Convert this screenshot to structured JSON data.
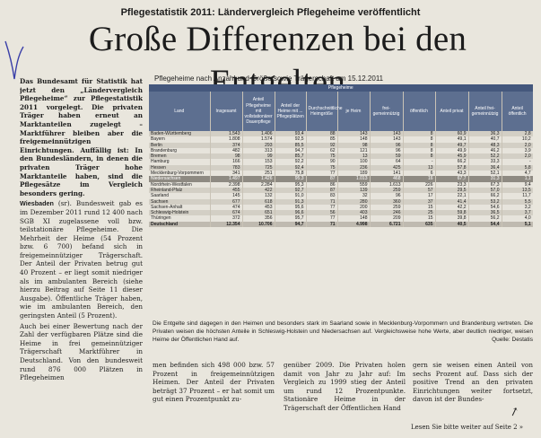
{
  "kicker": "Pflegestatistik 2011: Ländervergleich Pflegeheime veröffentlicht",
  "headline": "Große Differenzen bei den Entgelten",
  "lead": "Das Bundesamt für Statistik hat jetzt den „Ländervergleich Pflegeheime“ zur Pflegestatistik 2011 vorgelegt. Die privaten Träger haben erneut an Marktanteilen zugelegt – Marktführer bleiben aber die freigemeinnützigen Einrichtungen. Auffällig ist: In den Bundesländern, in denen die privaten Träger hohe Marktanteile haben, sind die Pflegesätze im Vergleich besonders gering.",
  "col1_body": [
    {
      "dateline": "Wiesbaden",
      "text": "(sr). Bundesweit gab es im Dezember 2011 rund 12 400 nach SGB XI zugelassene voll bzw. teilstationäre Pflegeheime. Die Mehrheit der Heime (54 Prozent bzw. 6 700) befand sich in freigemeinnütziger Trägerschaft. Der Anteil der Privaten betrug gut 40 Prozent – er liegt somit niedriger als im ambulanten Bereich (siehe hierzu Beitrag auf Seite 11 dieser Ausgabe). Öffentliche Träger haben, wie im ambulanten Bereich, den geringsten Anteil (5 Prozent)."
    },
    {
      "text": "Auch bei einer Bewertung nach der Zahl der verfügbaren Plätze sind die Heime in frei gemeinnütziger Trägerschaft Marktführer in Deutschland. Von den bundesweit rund 876 000 Plätzen in Pflegeheimen"
    }
  ],
  "col2_text": "men befinden sich 498 000 bzw. 57 Prozent in freigemeinnützigen Heimen. Der Anteil der Privaten beträgt 37 Prozent – er hat somit um gut einen Prozentpunkt zu-",
  "col3_text": "genüber 2009. Die Privaten holen damit von Jahr zu Jahr auf: Im Vergleich zu 1999 stieg der Anteil um rund 12 Prozentpunkte. Stationäre Heime in der Trägerschaft der Öffentlichen Hand",
  "col4_text": "gern sie weisen einen Anteil von sechs Prozent auf. Dass sich der positive Trend an den privaten Einrichtungen weiter fortsetzt, davon ist der Bundes-",
  "read_on": "Lesen Sie bitte weiter auf Seite 2 »",
  "table": {
    "title": "Pflegeheime nach Anzahl und Größe sowie Trägerschaft am 15.12.2011",
    "header_top": "Pflegeheime",
    "header_sub": [
      "Land",
      "Insgesamt",
      "Anteil Pflegeheime mit vollstationärer Dauerpflege",
      "Anteil der Heime mit ... Pflegeplätzen",
      "Durchschnittliche Heimgröße",
      "je Heim",
      "frei-gemeinnützig",
      "öffentlich",
      "Anteil privat",
      "Anteil frei-gemeinnützig",
      "Anteil öffentlich"
    ],
    "rows": [
      [
        "Baden-Württemberg",
        "1.543",
        "1.406",
        "93,4",
        "88",
        "143",
        "143",
        "8",
        "60,9",
        "36,3",
        "2,8"
      ],
      [
        "Bayern",
        "1.808",
        "1.574",
        "92,5",
        "85",
        "148",
        "143",
        "8",
        "49,1",
        "40,7",
        "10,2"
      ],
      [
        "Berlin",
        "374",
        "293",
        "85,5",
        "92",
        "98",
        "96",
        "8",
        "49,7",
        "48,3",
        "2,0"
      ],
      [
        "Brandenburg",
        "482",
        "313",
        "94,7",
        "62",
        "121",
        "96",
        "8",
        "49,9",
        "46,2",
        "3,9"
      ],
      [
        "Bremen",
        "98",
        "99",
        "85,7",
        "75",
        "13",
        "59",
        "8",
        "45,9",
        "52,2",
        "2,0"
      ],
      [
        "Hamburg",
        "166",
        "153",
        "92,2",
        "90",
        "100",
        "64",
        "-",
        "66,2",
        "33,3",
        "-"
      ],
      [
        "Hessen",
        "783",
        "725",
        "92,4",
        "75",
        "236",
        "425",
        "13",
        "57,8",
        "36,4",
        "5,8"
      ],
      [
        "Mecklenburg-Vorpommern",
        "341",
        "251",
        "75,8",
        "77",
        "189",
        "141",
        "6",
        "43,3",
        "52,1",
        "4,7"
      ],
      [
        "Niedersachsen",
        "1.497",
        "1.426",
        "95,3",
        "87",
        "1.013",
        "468",
        "16",
        "67,7",
        "31,3",
        "1,1"
      ],
      [
        "Nordrhein-Westfalen",
        "2.398",
        "2.284",
        "95,3",
        "86",
        "559",
        "1.613",
        "226",
        "23,3",
        "67,3",
        "9,4"
      ],
      [
        "Rheinland-Pfalz",
        "455",
        "422",
        "92,7",
        "87",
        "139",
        "259",
        "57",
        "29,5",
        "57,0",
        "13,5"
      ],
      [
        "Saarland",
        "145",
        "132",
        "91,0",
        "83",
        "32",
        "96",
        "17",
        "22,1",
        "66,2",
        "11,7"
      ],
      [
        "Sachsen",
        "677",
        "618",
        "91,3",
        "71",
        "280",
        "360",
        "37",
        "41,4",
        "53,2",
        "5,5"
      ],
      [
        "Sachsen-Anhalt",
        "474",
        "453",
        "95,6",
        "77",
        "200",
        "259",
        "15",
        "42,2",
        "54,6",
        "3,2"
      ],
      [
        "Schleswig-Holstein",
        "674",
        "651",
        "96,6",
        "56",
        "403",
        "246",
        "25",
        "59,8",
        "36,5",
        "3,7"
      ],
      [
        "Thüringen",
        "372",
        "356",
        "95,7",
        "77",
        "148",
        "209",
        "15",
        "39,8",
        "56,2",
        "4,0"
      ],
      [
        "Deutschland",
        "12.354",
        "10.706",
        "94,7",
        "71",
        "4.998",
        "6.721",
        "635",
        "40,5",
        "54,4",
        "5,1"
      ]
    ],
    "highlight_row": 8,
    "note": "Die Entgelte sind dagegen in den Heimen und besonders stark im Saarland sowie in Mecklenburg-Vorpommern und Brandenburg vertreten. Die Privaten weisen die höchsten Anteile in Schleswig-Holstein und Niedersachsen auf. Vergleichsweise hohe Werte, aber deutlich niedriger, weisen Heime der Öffentlichen Hand auf.",
    "source": "Quelle: Destatis"
  }
}
